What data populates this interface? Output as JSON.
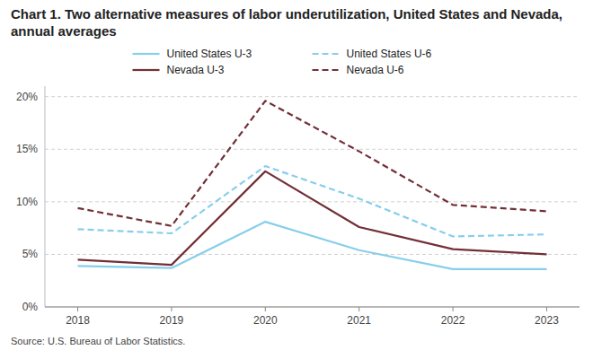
{
  "chart_data": {
    "type": "line",
    "title": "Chart 1. Two alternative measures of labor underutilization, United States and Nevada, annual averages",
    "source": "Source: U.S. Bureau of Labor Statistics.",
    "x": [
      2018,
      2019,
      2020,
      2021,
      2022,
      2023
    ],
    "xlim": [
      2017.65,
      2023.35
    ],
    "xticks": [
      2018,
      2019,
      2020,
      2021,
      2022,
      2023
    ],
    "ylim": [
      0,
      21
    ],
    "yticks": [
      {
        "value": 0,
        "label": "0%"
      },
      {
        "value": 5,
        "label": "5%"
      },
      {
        "value": 10,
        "label": "10%"
      },
      {
        "value": 15,
        "label": "15%"
      },
      {
        "value": 20,
        "label": "20%"
      }
    ],
    "grid": true,
    "legend": "top",
    "series": [
      {
        "name": "United States U-3",
        "color": "#87CEEB",
        "line_style": "solid",
        "values": [
          3.9,
          3.7,
          8.1,
          5.4,
          3.6,
          3.6
        ]
      },
      {
        "name": "United States U-6",
        "color": "#87CEEB",
        "line_style": "dashed",
        "values": [
          7.4,
          7.0,
          13.4,
          10.3,
          6.7,
          6.9
        ]
      },
      {
        "name": "Nevada U-3",
        "color": "#722F37",
        "line_style": "solid",
        "values": [
          4.5,
          4.0,
          12.9,
          7.6,
          5.5,
          5.0
        ]
      },
      {
        "name": "Nevada U-6",
        "color": "#722F37",
        "line_style": "dashed",
        "values": [
          9.4,
          7.7,
          19.6,
          14.8,
          9.7,
          9.1
        ]
      }
    ]
  }
}
